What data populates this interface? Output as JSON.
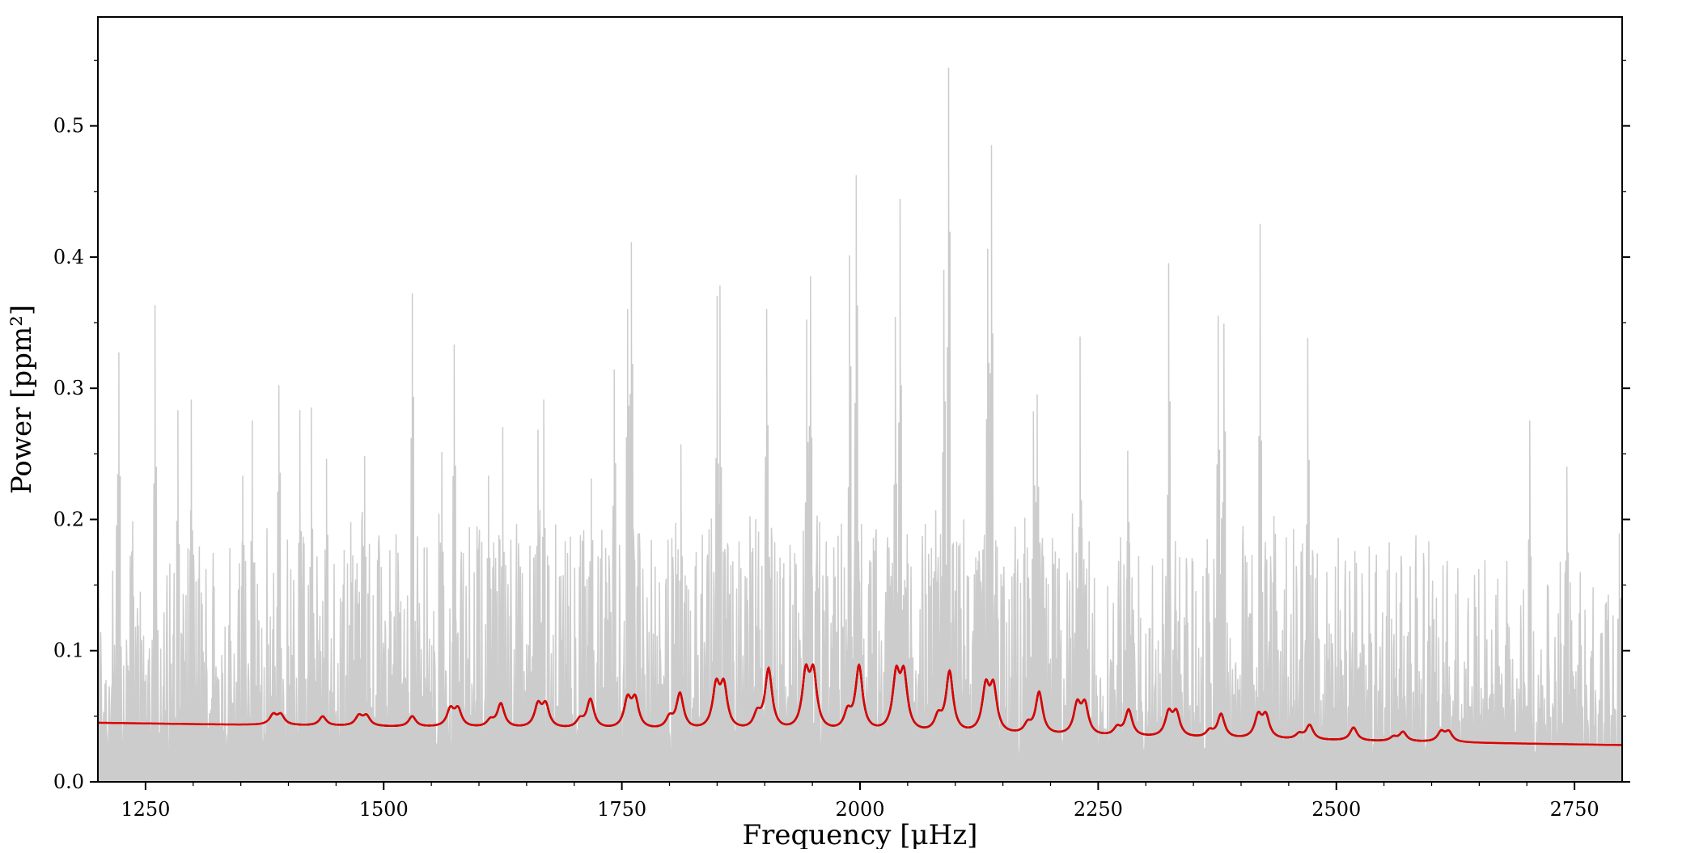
{
  "chart_data": {
    "type": "line",
    "title": "",
    "xlabel": "Frequency [μHz]",
    "ylabel": "Power [ppm²]",
    "xlim": [
      1200,
      2800
    ],
    "ylim": [
      0.0,
      0.583
    ],
    "xticks": [
      1250,
      1500,
      1750,
      2000,
      2250,
      2500,
      2750
    ],
    "xtick_labels": [
      "1250",
      "1500",
      "1750",
      "2000",
      "2250",
      "2500",
      "2750"
    ],
    "yticks": [
      0.0,
      0.1,
      0.2,
      0.3,
      0.4,
      0.5
    ],
    "ytick_labels": [
      "0.0",
      "0.1",
      "0.2",
      "0.3",
      "0.4",
      "0.5"
    ],
    "grid": false,
    "legend": "none",
    "colors": {
      "spectrum": "#cccccc",
      "model_full": "#000000",
      "model_fit_range": "#dd0000"
    },
    "background": {
      "description": "Power spectrum of stellar oscillations",
      "x_start": 1200,
      "x_end": 2800,
      "noise_floor_start": 0.045,
      "noise_floor_end": 0.028,
      "typical_noise_max": 0.17
    },
    "spectrum_peaks": [
      {
        "x": 1222,
        "y": 0.327
      },
      {
        "x": 1260,
        "y": 0.363
      },
      {
        "x": 1284,
        "y": 0.283
      },
      {
        "x": 1298,
        "y": 0.291
      },
      {
        "x": 1352,
        "y": 0.233
      },
      {
        "x": 1362,
        "y": 0.275
      },
      {
        "x": 1390,
        "y": 0.302
      },
      {
        "x": 1412,
        "y": 0.283
      },
      {
        "x": 1424,
        "y": 0.285
      },
      {
        "x": 1440,
        "y": 0.246
      },
      {
        "x": 1480,
        "y": 0.248
      },
      {
        "x": 1530,
        "y": 0.372
      },
      {
        "x": 1561,
        "y": 0.251
      },
      {
        "x": 1574,
        "y": 0.333
      },
      {
        "x": 1610,
        "y": 0.233
      },
      {
        "x": 1625,
        "y": 0.27
      },
      {
        "x": 1662,
        "y": 0.268
      },
      {
        "x": 1668,
        "y": 0.291
      },
      {
        "x": 1718,
        "y": 0.231
      },
      {
        "x": 1742,
        "y": 0.314
      },
      {
        "x": 1756,
        "y": 0.36
      },
      {
        "x": 1760,
        "y": 0.411
      },
      {
        "x": 1812,
        "y": 0.257
      },
      {
        "x": 1850,
        "y": 0.37
      },
      {
        "x": 1853,
        "y": 0.378
      },
      {
        "x": 1902,
        "y": 0.36
      },
      {
        "x": 1944,
        "y": 0.352
      },
      {
        "x": 1948,
        "y": 0.385
      },
      {
        "x": 1989,
        "y": 0.401
      },
      {
        "x": 1996,
        "y": 0.462
      },
      {
        "x": 2037,
        "y": 0.354
      },
      {
        "x": 2042,
        "y": 0.444
      },
      {
        "x": 2088,
        "y": 0.39
      },
      {
        "x": 2093,
        "y": 0.544
      },
      {
        "x": 2134,
        "y": 0.406
      },
      {
        "x": 2138,
        "y": 0.485
      },
      {
        "x": 2182,
        "y": 0.282
      },
      {
        "x": 2186,
        "y": 0.295
      },
      {
        "x": 2231,
        "y": 0.339
      },
      {
        "x": 2281,
        "y": 0.252
      },
      {
        "x": 2324,
        "y": 0.395
      },
      {
        "x": 2376,
        "y": 0.355
      },
      {
        "x": 2382,
        "y": 0.349
      },
      {
        "x": 2420,
        "y": 0.425
      },
      {
        "x": 2470,
        "y": 0.338
      },
      {
        "x": 2703,
        "y": 0.275
      },
      {
        "x": 2742,
        "y": 0.24
      },
      {
        "x": 2797,
        "y": 0.189
      }
    ],
    "model_modes": [
      {
        "x": 1388,
        "h": 0.008,
        "split": 8
      },
      {
        "x": 1436,
        "h": 0.007,
        "split": 0
      },
      {
        "x": 1478,
        "h": 0.008,
        "split": 8
      },
      {
        "x": 1530,
        "h": 0.008,
        "split": 0
      },
      {
        "x": 1574,
        "h": 0.014,
        "split": 8
      },
      {
        "x": 1612,
        "h": 0.005,
        "split": 0
      },
      {
        "x": 1623,
        "h": 0.018,
        "split": 0
      },
      {
        "x": 1666,
        "h": 0.018,
        "split": 8
      },
      {
        "x": 1706,
        "h": 0.006,
        "split": 0
      },
      {
        "x": 1717,
        "h": 0.022,
        "split": 0
      },
      {
        "x": 1760,
        "h": 0.023,
        "split": 8
      },
      {
        "x": 1800,
        "h": 0.008,
        "split": 0
      },
      {
        "x": 1811,
        "h": 0.027,
        "split": 0
      },
      {
        "x": 1853,
        "h": 0.034,
        "split": 8
      },
      {
        "x": 1892,
        "h": 0.011,
        "split": 0
      },
      {
        "x": 1904,
        "h": 0.046,
        "split": 0
      },
      {
        "x": 1947,
        "h": 0.044,
        "split": 8
      },
      {
        "x": 1987,
        "h": 0.013,
        "split": 0
      },
      {
        "x": 1999,
        "h": 0.049,
        "split": 0
      },
      {
        "x": 2042,
        "h": 0.044,
        "split": 8
      },
      {
        "x": 2082,
        "h": 0.011,
        "split": 0
      },
      {
        "x": 2094,
        "h": 0.046,
        "split": 0
      },
      {
        "x": 2136,
        "h": 0.036,
        "split": 8
      },
      {
        "x": 2176,
        "h": 0.007,
        "split": 0
      },
      {
        "x": 2188,
        "h": 0.032,
        "split": 0
      },
      {
        "x": 2232,
        "h": 0.024,
        "split": 8
      },
      {
        "x": 2270,
        "h": 0.006,
        "split": 0
      },
      {
        "x": 2282,
        "h": 0.02,
        "split": 0
      },
      {
        "x": 2328,
        "h": 0.019,
        "split": 8
      },
      {
        "x": 2367,
        "h": 0.005,
        "split": 0
      },
      {
        "x": 2379,
        "h": 0.018,
        "split": 0
      },
      {
        "x": 2422,
        "h": 0.018,
        "split": 8
      },
      {
        "x": 2461,
        "h": 0.004,
        "split": 0
      },
      {
        "x": 2472,
        "h": 0.011,
        "split": 0
      },
      {
        "x": 2518,
        "h": 0.01,
        "split": 0
      },
      {
        "x": 2560,
        "h": 0.003,
        "split": 0
      },
      {
        "x": 2570,
        "h": 0.007,
        "split": 0
      },
      {
        "x": 2614,
        "h": 0.008,
        "split": 8
      }
    ],
    "mode_width": 4.5,
    "fit_range": [
      1610,
      2390
    ],
    "model_range_full": [
      1380,
      2630
    ]
  }
}
